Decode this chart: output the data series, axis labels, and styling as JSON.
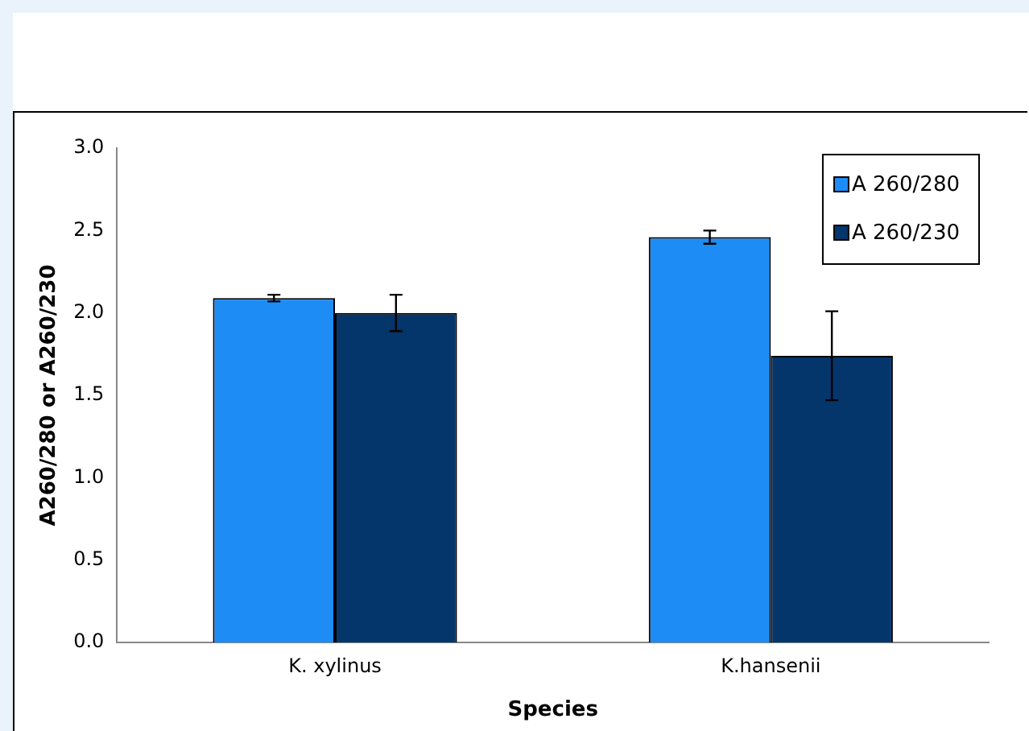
{
  "chart_data": {
    "type": "bar",
    "xlabel": "Species",
    "ylabel": "A260/280 or A260/230",
    "categories": [
      "K. xylinus",
      "K.hansenii"
    ],
    "series": [
      {
        "name": "A 260/280",
        "color": "#1e8cf5",
        "values": [
          2.09,
          2.46
        ],
        "errors": [
          0.02,
          0.04
        ]
      },
      {
        "name": "A 260/230",
        "color": "#04356b",
        "values": [
          2.0,
          1.74
        ],
        "errors": [
          0.11,
          0.27
        ]
      }
    ],
    "ylim": [
      0,
      3
    ],
    "yticks": [
      {
        "value": 0,
        "label": "0.0"
      },
      {
        "value": 0.5,
        "label": "0.5"
      },
      {
        "value": 1,
        "label": "1.0"
      },
      {
        "value": 1.5,
        "label": "1.5"
      },
      {
        "value": 2,
        "label": "2.0"
      },
      {
        "value": 2.5,
        "label": "2.5"
      },
      {
        "value": 3,
        "label": "3.0"
      }
    ],
    "grid": false,
    "legend": "top right"
  }
}
